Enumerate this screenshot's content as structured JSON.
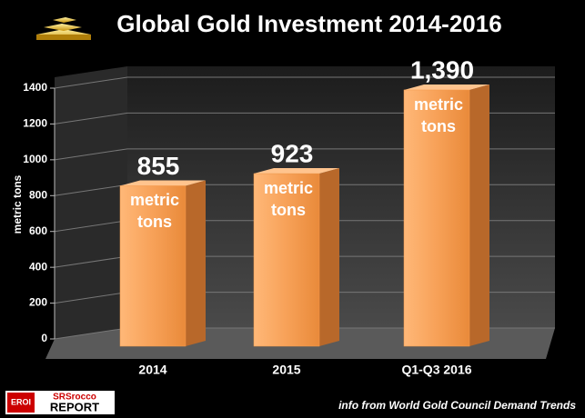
{
  "chart_data": {
    "type": "bar3d",
    "title": "Global Gold Investment 2014-2016",
    "y_label": "metric tons",
    "annotation": "metric tons",
    "categories": [
      "2014",
      "2015",
      "Q1-Q3 2016"
    ],
    "values": [
      855,
      923,
      1390
    ],
    "value_labels": [
      "855",
      "923",
      "1,390"
    ],
    "color": "#f39a4c",
    "ylim": [
      0,
      1400
    ],
    "yticks": [
      0,
      200,
      400,
      600,
      800,
      1000,
      1200,
      1400
    ],
    "grid": true,
    "source": "info from World Gold Council Demand Trends",
    "logo": {
      "badge": "EROI",
      "line1": "SRSrocco",
      "line2": "REPORT"
    }
  }
}
